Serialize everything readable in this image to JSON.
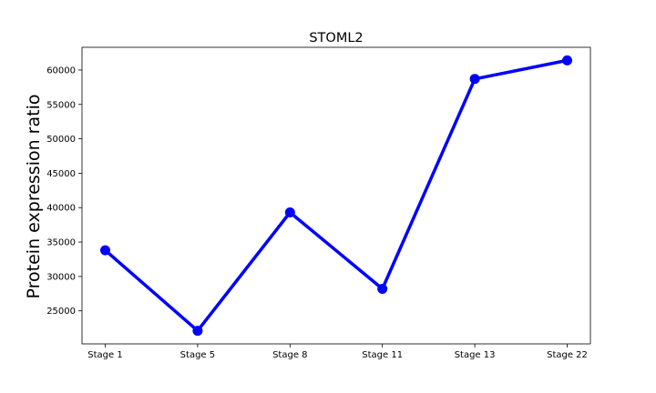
{
  "chart_data": {
    "type": "line",
    "title": "STOML2",
    "xlabel": "",
    "ylabel": "Protein expression ratio",
    "categories": [
      "Stage 1",
      "Stage 5",
      "Stage 8",
      "Stage 11",
      "Stage 13",
      "Stage 22"
    ],
    "series": [
      {
        "values": [
          33800,
          22100,
          39300,
          28200,
          58700,
          61400
        ],
        "color": "#0000ff"
      }
    ],
    "ylim": [
      20200,
      63300
    ],
    "yticks": [
      25000,
      30000,
      35000,
      40000,
      45000,
      50000,
      55000,
      60000
    ],
    "grid": false,
    "legend": "none"
  }
}
